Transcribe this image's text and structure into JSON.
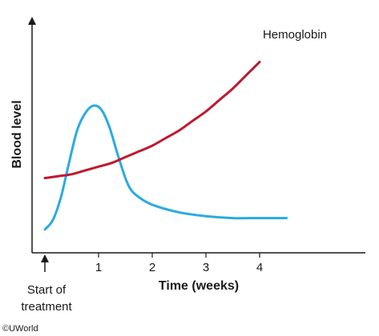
{
  "chart_data": {
    "type": "line",
    "xlabel": "Time (weeks)",
    "ylabel": "Blood level",
    "xlim": [
      -0.15,
      4.75
    ],
    "ylim": [
      0,
      1
    ],
    "x_ticks": [
      1,
      2,
      3,
      4
    ],
    "x_tick_labels": [
      "1",
      "2",
      "3",
      "4"
    ],
    "y_ticks_shown": false,
    "grid": false,
    "legend": "none",
    "series": [
      {
        "name": "Hemoglobin",
        "color": "#c0182e",
        "x": [
          0,
          0.25,
          0.5,
          0.75,
          1,
          1.25,
          1.5,
          1.75,
          2,
          2.25,
          2.5,
          2.75,
          3,
          3.25,
          3.5,
          3.75,
          4
        ],
        "y": [
          0.3,
          0.31,
          0.32,
          0.34,
          0.36,
          0.38,
          0.41,
          0.44,
          0.47,
          0.51,
          0.55,
          0.6,
          0.65,
          0.71,
          0.77,
          0.84,
          0.91
        ]
      },
      {
        "name": "",
        "color": "#29abe2",
        "x": [
          0,
          0.15,
          0.3,
          0.45,
          0.6,
          0.75,
          0.9,
          1.05,
          1.2,
          1.35,
          1.5,
          1.6,
          1.75,
          2,
          2.5,
          3,
          3.5,
          4,
          4.5
        ],
        "y": [
          0.03,
          0.08,
          0.2,
          0.38,
          0.55,
          0.64,
          0.68,
          0.66,
          0.57,
          0.43,
          0.3,
          0.24,
          0.2,
          0.16,
          0.12,
          0.1,
          0.09,
          0.09,
          0.09
        ]
      }
    ],
    "annotations": [
      {
        "text": "Hemoglobin"
      },
      {
        "lines": [
          "Start of",
          "treatment"
        ]
      }
    ]
  },
  "copyright": "©UWorld"
}
